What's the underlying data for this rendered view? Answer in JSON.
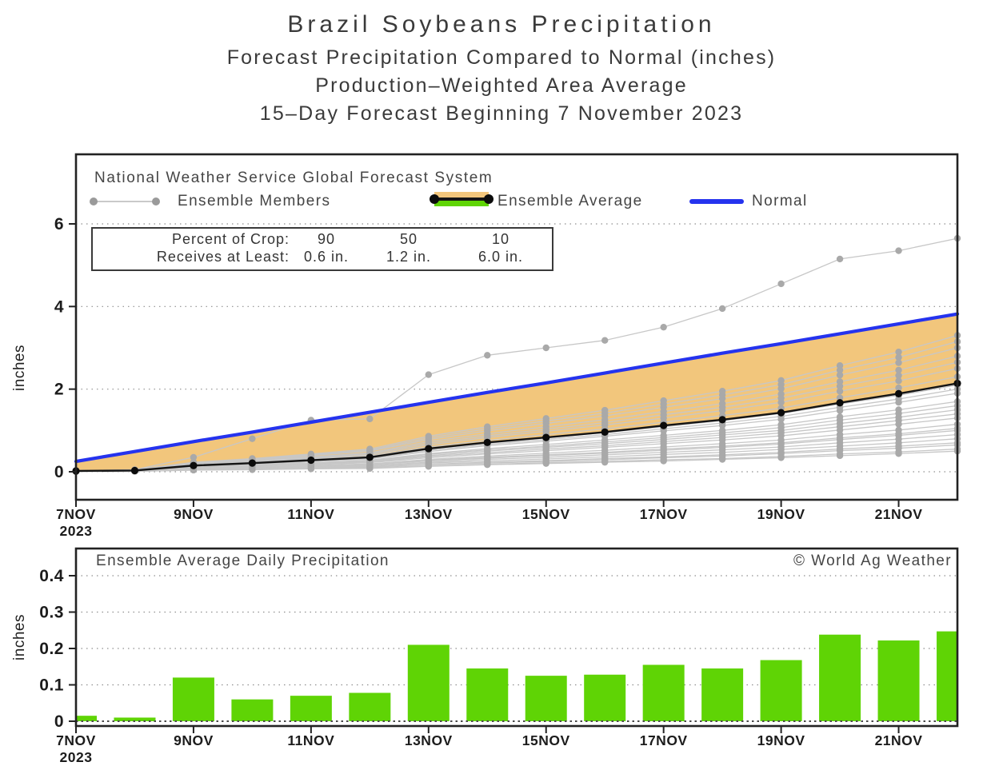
{
  "title_block": {
    "line1": "Brazil Soybeans Precipitation",
    "line2": "Forecast Precipitation Compared to Normal (inches)",
    "line3": "Production–Weighted Area Average",
    "line4": "15–Day Forecast Beginning 7 November 2023"
  },
  "top_chart": {
    "legend": {
      "header": "National Weather Service Global Forecast System",
      "members_label": "Ensemble Members",
      "average_label": "Ensemble Average",
      "normal_label": "Normal"
    },
    "info_box": {
      "row1_label": "Percent of Crop:",
      "row1_values": [
        "90",
        "50",
        "10"
      ],
      "row2_label": "Receives at Least:",
      "row2_values": [
        "0.6 in.",
        "1.2 in.",
        "6.0 in."
      ]
    }
  },
  "bottom_chart": {
    "title": "Ensemble Average Daily Precipitation",
    "credit": "© World Ag Weather"
  },
  "colors": {
    "normal_blue": "#2533ee",
    "band_orange": "#f2c67c",
    "bar_green": "#5fd405",
    "member_line": "#c7c7c7",
    "member_dot": "#a9a9a9",
    "average_black": "#141414",
    "grid_gray": "#8f8f8f",
    "axis_black": "#222222"
  },
  "chart_data": [
    {
      "type": "line",
      "title": "Forecast cumulative precipitation vs normal",
      "ylabel": "inches",
      "ylim": [
        0,
        7.7
      ],
      "yticks": [
        0,
        2,
        4,
        6
      ],
      "x_dates": [
        "7NOV",
        "8NOV",
        "9NOV",
        "10NOV",
        "11NOV",
        "12NOV",
        "13NOV",
        "14NOV",
        "15NOV",
        "16NOV",
        "17NOV",
        "18NOV",
        "19NOV",
        "20NOV",
        "21NOV",
        "22NOV"
      ],
      "xtick_days": [
        0,
        2,
        4,
        6,
        8,
        10,
        12,
        14
      ],
      "xtick_labels": [
        "7NOV",
        "9NOV",
        "11NOV",
        "13NOV",
        "15NOV",
        "17NOV",
        "19NOV",
        "21NOV"
      ],
      "xtick_year": "2023",
      "normal": [
        0.25,
        0.49,
        0.73,
        0.96,
        1.2,
        1.44,
        1.68,
        1.92,
        2.15,
        2.39,
        2.63,
        2.87,
        3.1,
        3.34,
        3.58,
        3.82
      ],
      "ensemble_average": [
        0.02,
        0.03,
        0.15,
        0.21,
        0.28,
        0.35,
        0.56,
        0.71,
        0.83,
        0.96,
        1.12,
        1.26,
        1.43,
        1.67,
        1.89,
        2.14
      ],
      "ensemble_members": [
        [
          0.01,
          0.01,
          0.04,
          0.05,
          0.07,
          0.08,
          0.13,
          0.17,
          0.2,
          0.23,
          0.26,
          0.3,
          0.34,
          0.39,
          0.44,
          0.5
        ],
        [
          0.01,
          0.01,
          0.04,
          0.06,
          0.08,
          0.09,
          0.14,
          0.18,
          0.22,
          0.25,
          0.29,
          0.32,
          0.37,
          0.43,
          0.48,
          0.55
        ],
        [
          0.01,
          0.01,
          0.05,
          0.07,
          0.09,
          0.11,
          0.17,
          0.21,
          0.25,
          0.29,
          0.34,
          0.38,
          0.44,
          0.51,
          0.57,
          0.65
        ],
        [
          0.01,
          0.01,
          0.05,
          0.07,
          0.09,
          0.12,
          0.18,
          0.23,
          0.27,
          0.32,
          0.36,
          0.41,
          0.47,
          0.55,
          0.62,
          0.7
        ],
        [
          0.01,
          0.02,
          0.06,
          0.08,
          0.1,
          0.14,
          0.21,
          0.26,
          0.31,
          0.36,
          0.42,
          0.47,
          0.54,
          0.62,
          0.7,
          0.8
        ],
        [
          0.01,
          0.01,
          0.06,
          0.09,
          0.12,
          0.15,
          0.23,
          0.3,
          0.35,
          0.41,
          0.47,
          0.53,
          0.6,
          0.7,
          0.79,
          0.9
        ],
        [
          0.01,
          0.02,
          0.07,
          0.1,
          0.13,
          0.17,
          0.26,
          0.33,
          0.39,
          0.45,
          0.52,
          0.59,
          0.67,
          0.78,
          0.88,
          1.0
        ],
        [
          0.01,
          0.01,
          0.07,
          0.1,
          0.14,
          0.17,
          0.28,
          0.35,
          0.41,
          0.47,
          0.55,
          0.62,
          0.7,
          0.82,
          0.92,
          1.05
        ],
        [
          0.01,
          0.02,
          0.08,
          0.11,
          0.15,
          0.19,
          0.3,
          0.38,
          0.45,
          0.52,
          0.6,
          0.68,
          0.77,
          0.9,
          1.01,
          1.15
        ],
        [
          0.02,
          0.02,
          0.09,
          0.13,
          0.17,
          0.22,
          0.34,
          0.43,
          0.51,
          0.59,
          0.68,
          0.77,
          0.87,
          1.01,
          1.15,
          1.3
        ],
        [
          0.02,
          0.02,
          0.1,
          0.13,
          0.18,
          0.23,
          0.37,
          0.46,
          0.55,
          0.63,
          0.73,
          0.83,
          0.94,
          1.09,
          1.24,
          1.4
        ],
        [
          0.02,
          0.02,
          0.11,
          0.14,
          0.19,
          0.25,
          0.39,
          0.5,
          0.59,
          0.68,
          0.78,
          0.89,
          1.0,
          1.17,
          1.32,
          1.5
        ],
        [
          0.02,
          0.02,
          0.11,
          0.15,
          0.21,
          0.26,
          0.42,
          0.53,
          0.62,
          0.72,
          0.83,
          0.94,
          1.07,
          1.25,
          1.41,
          1.6
        ],
        [
          0.02,
          0.02,
          0.12,
          0.16,
          0.22,
          0.28,
          0.44,
          0.56,
          0.66,
          0.77,
          0.88,
          1.0,
          1.14,
          1.33,
          1.5,
          1.7
        ],
        [
          0.02,
          0.03,
          0.13,
          0.18,
          0.25,
          0.31,
          0.49,
          0.63,
          0.74,
          0.86,
          0.99,
          1.12,
          1.27,
          1.48,
          1.68,
          1.9
        ],
        [
          0.02,
          0.03,
          0.14,
          0.19,
          0.26,
          0.33,
          0.52,
          0.66,
          0.78,
          0.9,
          1.04,
          1.18,
          1.34,
          1.56,
          1.76,
          2.0
        ],
        [
          0.02,
          0.03,
          0.14,
          0.2,
          0.27,
          0.35,
          0.55,
          0.69,
          0.82,
          0.95,
          1.09,
          1.24,
          1.41,
          1.64,
          1.85,
          2.1
        ],
        [
          0.02,
          0.03,
          0.16,
          0.22,
          0.3,
          0.38,
          0.6,
          0.76,
          0.9,
          1.04,
          1.2,
          1.36,
          1.54,
          1.79,
          2.03,
          2.3
        ],
        [
          0.03,
          0.03,
          0.17,
          0.24,
          0.32,
          0.41,
          0.65,
          0.83,
          0.98,
          1.13,
          1.3,
          1.48,
          1.68,
          1.95,
          2.2,
          2.5
        ],
        [
          0.03,
          0.04,
          0.18,
          0.25,
          0.34,
          0.44,
          0.69,
          0.87,
          1.03,
          1.19,
          1.38,
          1.56,
          1.78,
          2.07,
          2.33,
          2.65
        ],
        [
          0.03,
          0.04,
          0.19,
          0.27,
          0.36,
          0.46,
          0.73,
          0.92,
          1.09,
          1.26,
          1.46,
          1.65,
          1.88,
          2.18,
          2.46,
          2.8
        ],
        [
          0.03,
          0.04,
          0.2,
          0.29,
          0.39,
          0.5,
          0.78,
          0.99,
          1.17,
          1.35,
          1.56,
          1.77,
          2.01,
          2.34,
          2.64,
          3.0
        ],
        [
          0.03,
          0.04,
          0.21,
          0.3,
          0.41,
          0.52,
          0.82,
          1.04,
          1.23,
          1.42,
          1.64,
          1.86,
          2.11,
          2.46,
          2.77,
          3.15
        ],
        [
          0.03,
          0.05,
          0.23,
          0.32,
          0.43,
          0.55,
          0.86,
          1.09,
          1.29,
          1.49,
          1.72,
          1.95,
          2.21,
          2.57,
          2.9,
          3.3
        ],
        [
          0.0,
          0.05,
          0.35,
          0.8,
          1.25,
          1.28,
          2.35,
          2.82,
          3.0,
          3.18,
          3.5,
          3.95,
          4.55,
          5.15,
          5.35,
          5.65
        ]
      ]
    },
    {
      "type": "bar",
      "title": "Ensemble Average Daily Precipitation",
      "ylabel": "inches",
      "ylim": [
        0,
        0.45
      ],
      "yticks": [
        0,
        0.1,
        0.2,
        0.3,
        0.4
      ],
      "x_dates": [
        "7NOV",
        "8NOV",
        "9NOV",
        "10NOV",
        "11NOV",
        "12NOV",
        "13NOV",
        "14NOV",
        "15NOV",
        "16NOV",
        "17NOV",
        "18NOV",
        "19NOV",
        "20NOV",
        "21NOV",
        "22NOV"
      ],
      "xtick_days": [
        0,
        2,
        4,
        6,
        8,
        10,
        12,
        14
      ],
      "xtick_labels": [
        "7NOV",
        "9NOV",
        "11NOV",
        "13NOV",
        "15NOV",
        "17NOV",
        "19NOV",
        "21NOV"
      ],
      "xtick_year": "2023",
      "values": [
        0.015,
        0.01,
        0.12,
        0.06,
        0.07,
        0.078,
        0.21,
        0.145,
        0.125,
        0.128,
        0.155,
        0.145,
        0.168,
        0.238,
        0.222,
        0.247
      ]
    }
  ]
}
